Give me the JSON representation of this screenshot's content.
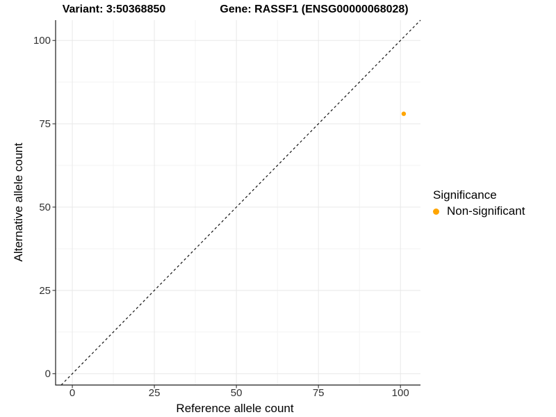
{
  "chart_data": {
    "type": "scatter",
    "titles": [
      "Variant: 3:50368850",
      "Gene: RASSF1 (ENSG00000068028)"
    ],
    "xlabel": "Reference allele count",
    "ylabel": "Alternative allele count",
    "x_ticks": [
      0,
      25,
      50,
      75,
      100
    ],
    "y_ticks": [
      0,
      25,
      50,
      75,
      100
    ],
    "x_minor_ticks": [
      12.5,
      37.5,
      62.5,
      87.5
    ],
    "y_minor_ticks": [
      12.5,
      37.5,
      62.5,
      87.5
    ],
    "xlim": [
      -5.1,
      106.1
    ],
    "ylim": [
      -3.4,
      106.1
    ],
    "grid": "major+minor",
    "legend_position": "right",
    "identity_line": {
      "slope": 1,
      "intercept": 0,
      "style": "dashed",
      "color": "#111111"
    },
    "series": [
      {
        "name": "Non-significant",
        "color": "#FFA500",
        "points": [
          {
            "x": 101,
            "y": 78
          }
        ]
      }
    ],
    "legend": {
      "title": "Significance",
      "items": [
        {
          "label": "Non-significant",
          "color": "#FFA500"
        }
      ]
    },
    "colors": {
      "background": "#FFFFFF",
      "grid_major": "#E8E8E8",
      "grid_minor": "#F3F3F3",
      "axis_line": "#1A1A1A",
      "tick_mark": "#333333",
      "tick_label": "#303030",
      "title": "#000000"
    }
  }
}
